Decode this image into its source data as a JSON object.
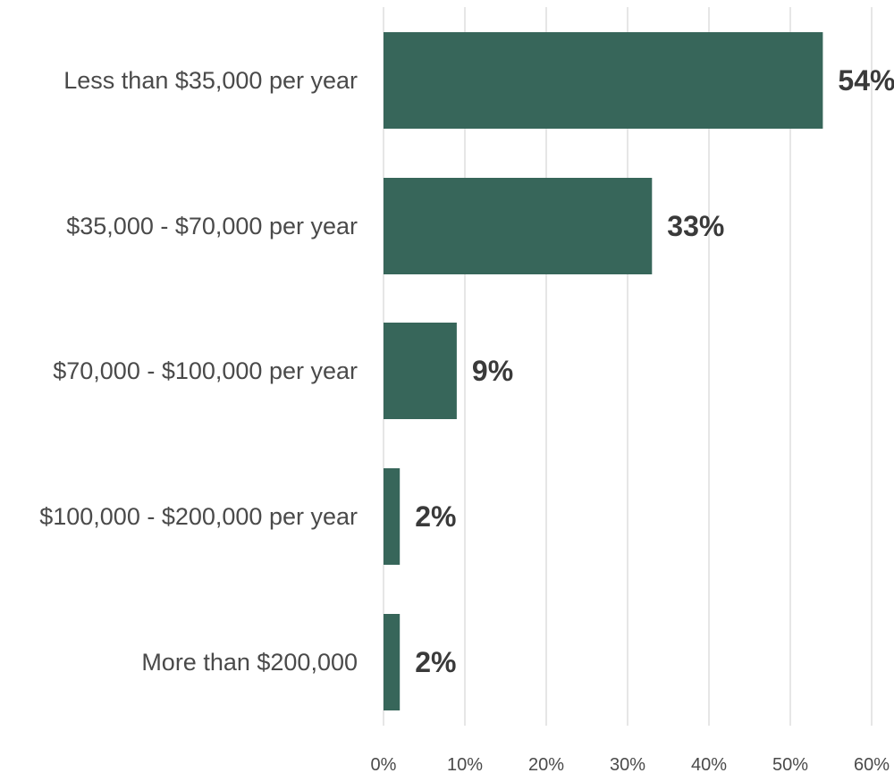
{
  "chart_data": {
    "type": "bar",
    "orientation": "horizontal",
    "categories": [
      "Less than $35,000 per year",
      "$35,000 - $70,000 per year",
      "$70,000 - $100,000 per year",
      "$100,000 - $200,000 per year",
      "More than $200,000"
    ],
    "values": [
      54,
      33,
      9,
      2,
      2
    ],
    "data_labels": [
      "54%",
      "33%",
      "9%",
      "2%",
      "2%"
    ],
    "xlim": [
      0,
      60
    ],
    "ticks": [
      0,
      10,
      20,
      30,
      40,
      50,
      60
    ],
    "tick_labels": [
      "0%",
      "10%",
      "20%",
      "30%",
      "40%",
      "50%",
      "60%"
    ],
    "title": "",
    "xlabel": "",
    "ylabel": "",
    "grid": true,
    "bar_color": "#37665a",
    "grid_color": "#e6e6e6"
  }
}
